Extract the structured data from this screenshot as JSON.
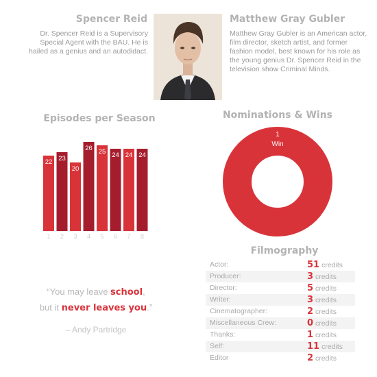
{
  "character": {
    "name": "Spencer Reid",
    "bio": "Dr. Spencer Reid is a Supervisory Special Agent with the BAU. He is hailed as a genius and an autodidact."
  },
  "actor": {
    "name": "Matthew Gray Gubler",
    "bio": "Matthew Gray Gubler is an American actor, film director, sketch artist, and former fashion model, best known for his role as the young genius Dr. Spencer Reid in the television show Criminal Minds."
  },
  "episodes": {
    "title": "Episodes per Season"
  },
  "nominations": {
    "title": "Nominations & Wins"
  },
  "quote": {
    "line1_pre": "“You may leave ",
    "line1_bold": "school",
    "line1_post": ",",
    "line2_pre": "but it ",
    "line2_bold": "never leaves you",
    "line2_post": ".”",
    "author": "– Andy Partridge"
  },
  "filmography": {
    "title": "Filmography",
    "unit": "credits",
    "rows": [
      {
        "label": "Actor:",
        "count": "51"
      },
      {
        "label": "Producer:",
        "count": "3"
      },
      {
        "label": "Director:",
        "count": "5"
      },
      {
        "label": "Writer:",
        "count": "3"
      },
      {
        "label": "Cinematographer:",
        "count": "2"
      },
      {
        "label": "Miscellaneous Crew:",
        "count": "0"
      },
      {
        "label": "Thanks:",
        "count": "1"
      },
      {
        "label": "Self:",
        "count": "11"
      },
      {
        "label": "Editor",
        "count": "2"
      }
    ]
  },
  "colors": {
    "bar_light": "#d9333a",
    "bar_dark": "#a51d2d",
    "donut": "#d9333a",
    "accent": "#d9333a"
  },
  "chart_data": [
    {
      "type": "bar",
      "title": "Episodes per Season",
      "categories": [
        "1",
        "2",
        "3",
        "4",
        "5",
        "6",
        "7",
        "8"
      ],
      "values": [
        22,
        23,
        20,
        26,
        25,
        24,
        24,
        24
      ],
      "ylim": [
        0,
        26
      ],
      "grid": false,
      "data_labels": true
    },
    {
      "type": "pie",
      "title": "Nominations & Wins",
      "labels": [
        "Win"
      ],
      "values": [
        1
      ],
      "donut": true
    }
  ]
}
